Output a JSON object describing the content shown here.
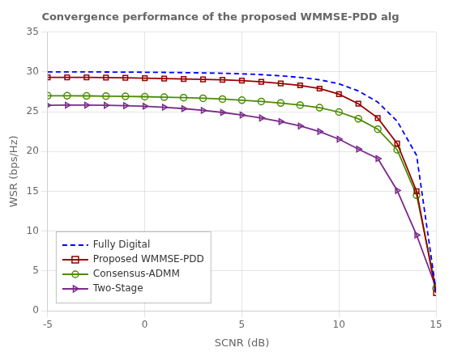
{
  "chart_data": {
    "type": "line",
    "title": "Convergence performance of the proposed WMMSE-PDD alg",
    "xlabel": "SCNR (dB)",
    "ylabel": "WSR (bps/Hz)",
    "x": [
      -5,
      -4,
      -3,
      -2,
      -1,
      0,
      1,
      2,
      3,
      4,
      5,
      6,
      7,
      8,
      9,
      10,
      11,
      12,
      13,
      14,
      15
    ],
    "series": [
      {
        "name": "Fully Digital",
        "color": "#0000FF",
        "marker": "none",
        "line_style": "dashed",
        "values": [
          30.0,
          30.0,
          30.0,
          29.98,
          29.97,
          29.95,
          29.93,
          29.9,
          29.87,
          29.82,
          29.75,
          29.65,
          29.5,
          29.3,
          29.0,
          28.5,
          27.6,
          26.2,
          23.8,
          19.5,
          2.5
        ]
      },
      {
        "name": "Proposed WMMSE-PDD",
        "color": "#990000",
        "marker": "square",
        "line_style": "solid",
        "values": [
          29.3,
          29.3,
          29.3,
          29.28,
          29.25,
          29.2,
          29.15,
          29.1,
          29.05,
          29.0,
          28.9,
          28.75,
          28.55,
          28.3,
          27.9,
          27.2,
          26.0,
          24.2,
          21.0,
          15.0,
          2.2
        ]
      },
      {
        "name": "Consensus-ADMM",
        "color": "#4C8C00",
        "marker": "circle",
        "line_style": "solid",
        "values": [
          27.0,
          27.0,
          26.98,
          26.95,
          26.92,
          26.88,
          26.82,
          26.76,
          26.68,
          26.58,
          26.44,
          26.28,
          26.08,
          25.82,
          25.5,
          24.95,
          24.1,
          22.8,
          20.2,
          14.5,
          2.8
        ]
      },
      {
        "name": "Two-Stage",
        "color": "#7B2A8B",
        "marker": "triangle-right",
        "line_style": "solid",
        "values": [
          25.8,
          25.82,
          25.82,
          25.8,
          25.75,
          25.68,
          25.55,
          25.38,
          25.16,
          24.9,
          24.58,
          24.2,
          23.75,
          23.2,
          22.5,
          21.55,
          20.3,
          19.1,
          15.1,
          9.5,
          2.9
        ]
      }
    ],
    "xlim": [
      -5,
      15
    ],
    "ylim": [
      0,
      35
    ],
    "xticks": [
      -5,
      0,
      5,
      10,
      15
    ],
    "yticks": [
      0,
      5,
      10,
      15,
      20,
      25,
      30,
      35
    ],
    "grid": true,
    "legend": "lower left"
  }
}
